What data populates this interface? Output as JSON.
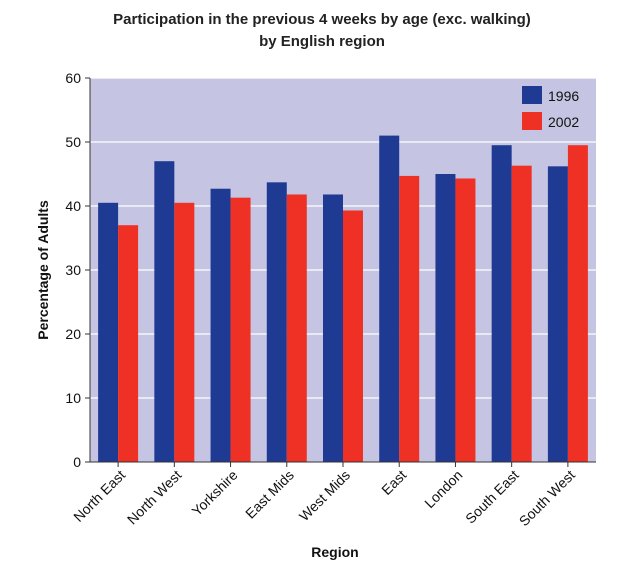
{
  "chart_data": {
    "type": "bar",
    "title_lines": [
      "Participation in the previous 4 weeks by age (exc. walking)",
      "by English region"
    ],
    "xlabel": "Region",
    "ylabel": "Percentage of Adults",
    "ylim": [
      0,
      60
    ],
    "yticks": [
      0,
      10,
      20,
      30,
      40,
      50,
      60
    ],
    "ytick_labels": [
      "0",
      "10",
      "20",
      "30",
      "40",
      "50",
      "60"
    ],
    "grid": true,
    "legend_position": "top-right",
    "categories": [
      "North East",
      "North West",
      "Yorkshire",
      "East Mids",
      "West Mids",
      "East",
      "London",
      "South East",
      "South West"
    ],
    "series": [
      {
        "name": "1996",
        "color": "#1f3a93",
        "values": [
          40.5,
          47,
          42.7,
          43.7,
          41.8,
          51,
          45,
          49.5,
          46.2
        ]
      },
      {
        "name": "2002",
        "color": "#ee3124",
        "values": [
          37,
          40.5,
          41.3,
          41.8,
          39.3,
          44.7,
          44.3,
          46.3,
          49.5
        ]
      }
    ],
    "plot_background": "#c5c5e3"
  }
}
